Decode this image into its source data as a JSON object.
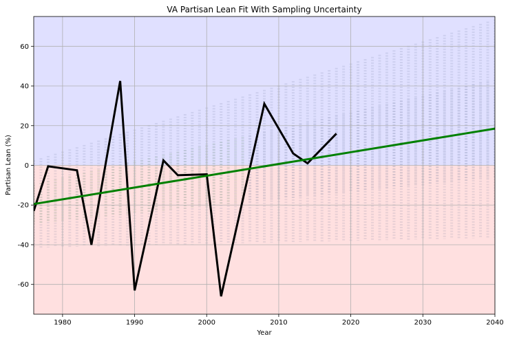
{
  "chart_data": {
    "type": "line",
    "title": "VA Partisan Lean Fit With Sampling Uncertainty",
    "xlabel": "Year",
    "ylabel": "Partisan Lean (%)",
    "xlim": [
      1976,
      2040
    ],
    "ylim": [
      -75,
      75
    ],
    "x_ticks": [
      1980,
      1990,
      2000,
      2010,
      2020,
      2030,
      2040
    ],
    "y_ticks": [
      -60,
      -40,
      -20,
      0,
      20,
      40,
      60
    ],
    "grid": true,
    "legend": "none",
    "background_regions": [
      {
        "from": 0,
        "to": 75,
        "color": "#e0e0ff"
      },
      {
        "from": -75,
        "to": 0,
        "color": "#ffe0e0"
      }
    ],
    "series": [
      {
        "color": "#000000",
        "x": [
          1976,
          1978,
          1982,
          1984,
          1988,
          1990,
          1994,
          1996,
          2000,
          2002,
          2008,
          2012,
          2014,
          2018
        ],
        "values": [
          -23,
          -0.5,
          -2.5,
          -40,
          42.5,
          -63,
          2.5,
          -5,
          -4.5,
          -66,
          31,
          6,
          1,
          16
        ]
      },
      {
        "color": "#008000",
        "x": [
          1976,
          2040
        ],
        "values": [
          -19.5,
          18.5
        ]
      }
    ],
    "uncertainty_samples": {
      "x_start": 1976,
      "x_end": 2040,
      "x_step": 1,
      "center_start": -19.5,
      "center_end": 18.5,
      "spread_start": 22,
      "spread_end": 55,
      "color": "#5c6b8c",
      "alpha": 0.05
    }
  }
}
